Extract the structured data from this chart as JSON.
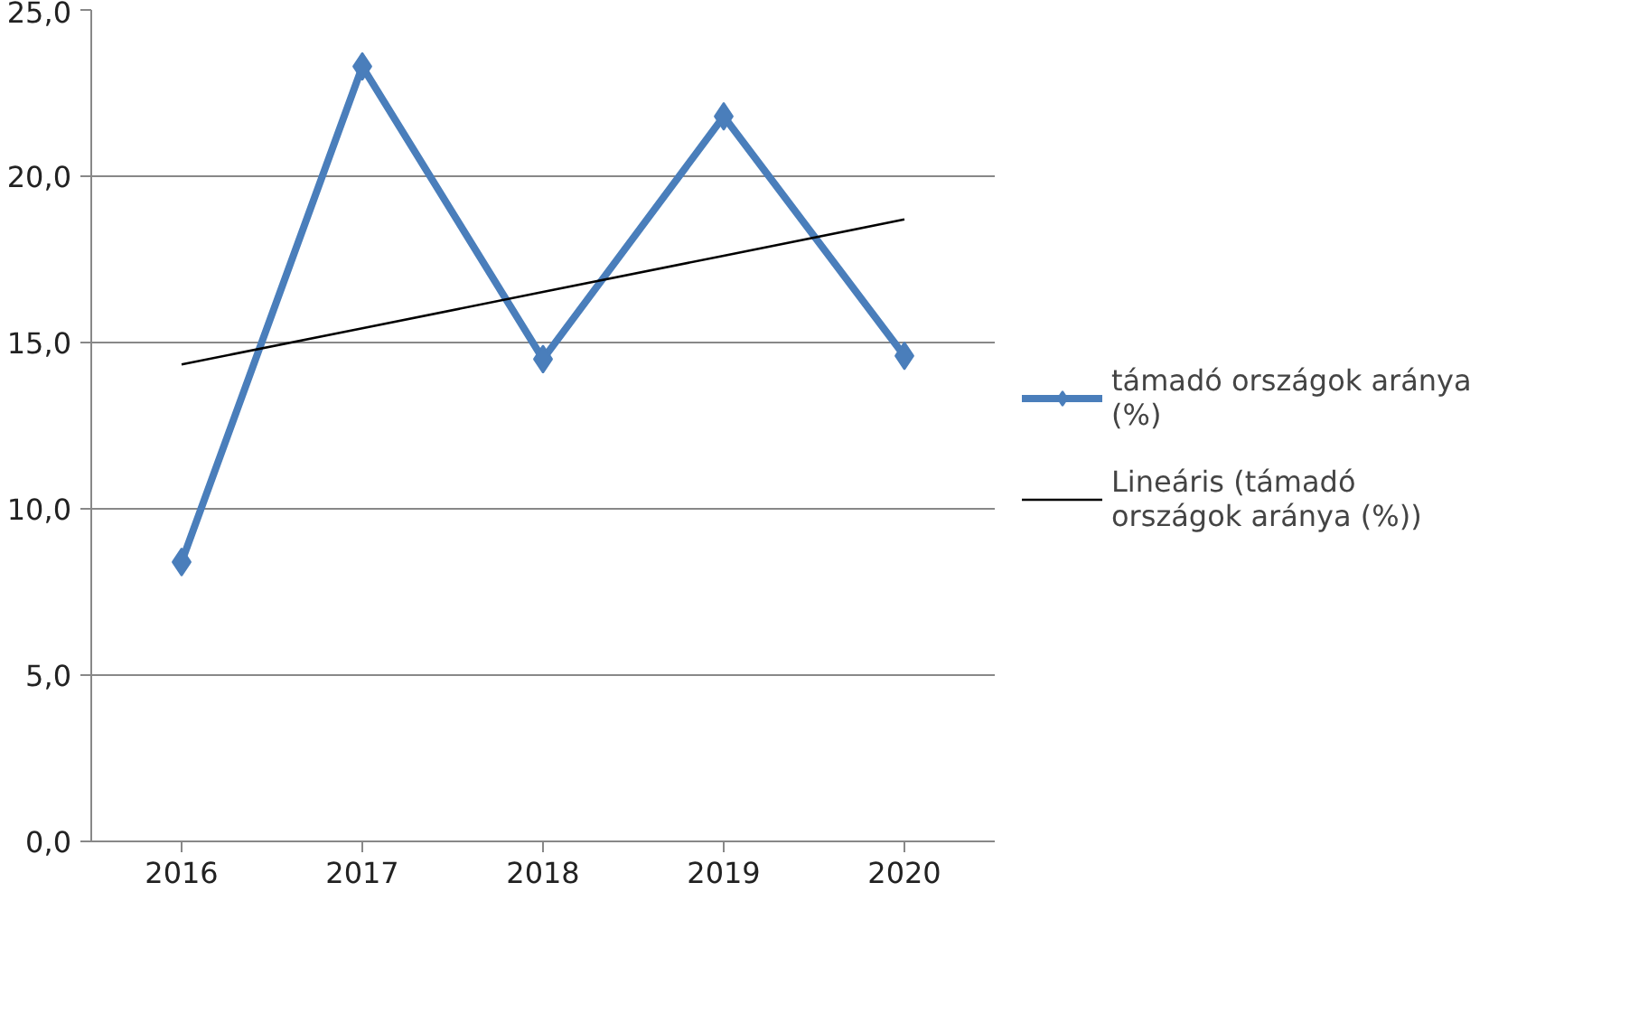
{
  "chart_data": {
    "type": "line",
    "categories": [
      "2016",
      "2017",
      "2018",
      "2019",
      "2020"
    ],
    "series": [
      {
        "name": "támadó országok aránya (%)",
        "color": "#4a7ebb",
        "values": [
          8.4,
          23.3,
          14.5,
          21.8,
          14.6
        ],
        "marker": "diamond"
      },
      {
        "name": "Lineáris (támadó országok aránya (%))",
        "color": "#000000",
        "values": [
          14.34,
          15.43,
          16.52,
          17.61,
          18.7
        ],
        "marker": "none"
      }
    ],
    "ylim": [
      0,
      25
    ],
    "yticks": [
      {
        "value": 0,
        "label": "0,0"
      },
      {
        "value": 5,
        "label": "5,0"
      },
      {
        "value": 10,
        "label": "10,0"
      },
      {
        "value": 15,
        "label": "15,0"
      },
      {
        "value": 20,
        "label": "20,0"
      },
      {
        "value": 25,
        "label": "25,0"
      }
    ],
    "grid": "y",
    "legend": "right",
    "line_style": "solid"
  }
}
